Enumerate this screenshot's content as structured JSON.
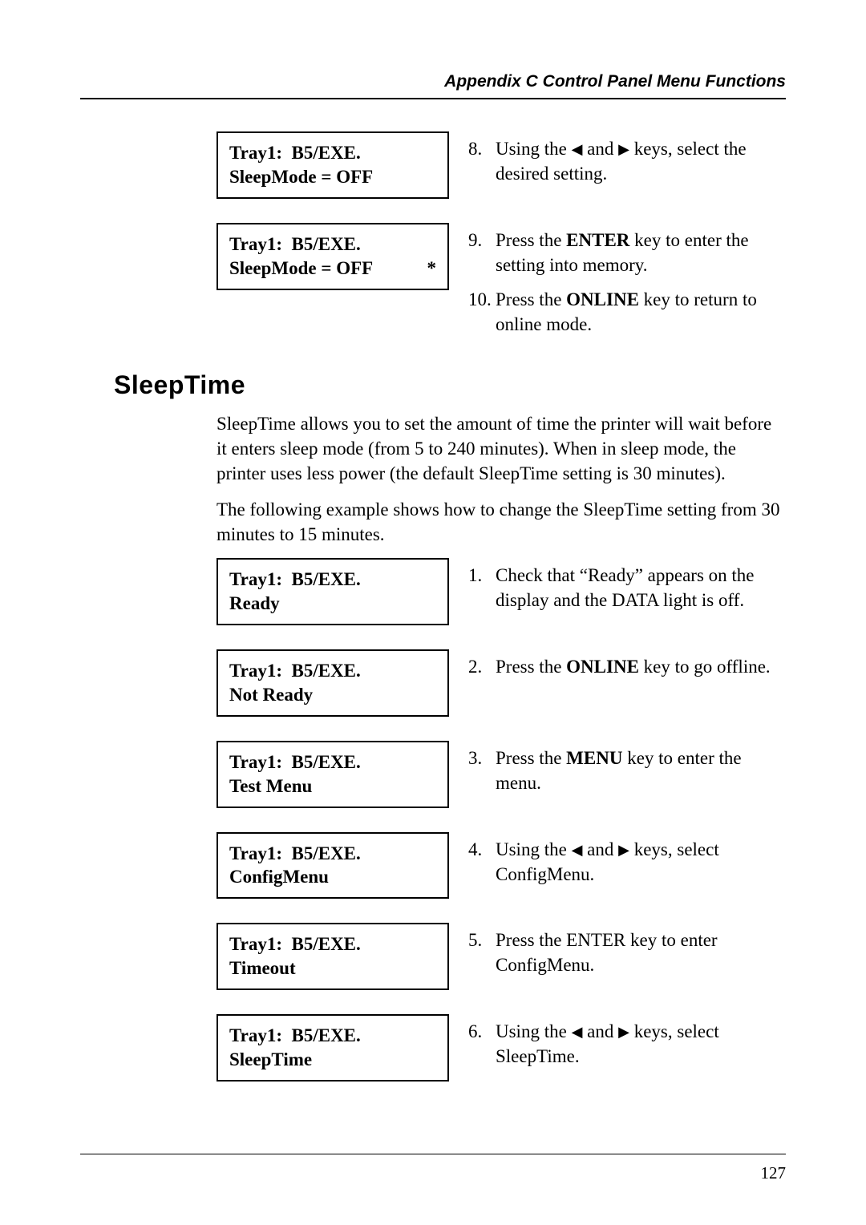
{
  "colors": {
    "text": "#000000",
    "background": "#ffffff",
    "rule": "#000000"
  },
  "typography": {
    "body_family": "Garamond / Georgia serif",
    "heading_family": "Arial / Helvetica sans-serif",
    "body_size_pt": 17,
    "heading_size_pt": 24,
    "header_size_pt": 16
  },
  "header": {
    "title": "Appendix C Control Panel Menu Functions"
  },
  "footer": {
    "page_number": "127"
  },
  "top_steps": [
    {
      "lcd": {
        "line1": "Tray1:  B5/EXE.",
        "line2": "SleepMode = OFF",
        "star": false
      },
      "items": [
        {
          "num": "8.",
          "text_parts": [
            "Using the ",
            "◀",
            " and ",
            "▶",
            " keys, select the desired setting."
          ],
          "bold": []
        }
      ]
    },
    {
      "lcd": {
        "line1": "Tray1:  B5/EXE.",
        "line2": "SleepMode = OFF",
        "star": true
      },
      "items": [
        {
          "num": "9.",
          "text_parts": [
            "Press the ",
            "ENTER",
            " key to enter the setting into memory."
          ],
          "bold": [
            1
          ]
        },
        {
          "num": "10.",
          "text_parts": [
            "Press the ",
            "ONLINE",
            " key to return to online mode."
          ],
          "bold": [
            1
          ]
        }
      ]
    }
  ],
  "section": {
    "heading": "SleepTime",
    "paragraphs": [
      "SleepTime allows you to set the amount of time the printer will wait before it enters sleep mode (from 5 to 240 minutes). When in sleep mode, the printer uses less power (the default SleepTime setting is 30 minutes).",
      "The following example shows how to change the SleepTime setting from 30 minutes to 15 minutes."
    ],
    "steps": [
      {
        "lcd": {
          "line1": "Tray1:  B5/EXE.",
          "line2": "Ready",
          "star": false
        },
        "items": [
          {
            "num": "1.",
            "text_parts": [
              "Check that “Ready” appears on the display and the DATA light is off."
            ],
            "bold": []
          }
        ]
      },
      {
        "lcd": {
          "line1": "Tray1:  B5/EXE.",
          "line2": "Not Ready",
          "star": false
        },
        "items": [
          {
            "num": "2.",
            "text_parts": [
              "Press the ",
              "ONLINE",
              " key to go offline."
            ],
            "bold": [
              1
            ]
          }
        ]
      },
      {
        "lcd": {
          "line1": "Tray1:  B5/EXE.",
          "line2": "Test Menu",
          "star": false
        },
        "items": [
          {
            "num": "3.",
            "text_parts": [
              "Press the ",
              "MENU",
              " key to enter the menu."
            ],
            "bold": [
              1
            ]
          }
        ]
      },
      {
        "lcd": {
          "line1": "Tray1:  B5/EXE.",
          "line2": "ConfigMenu",
          "star": false
        },
        "items": [
          {
            "num": "4.",
            "text_parts": [
              "Using the ",
              "◀",
              " and ",
              "▶",
              " keys, select ConfigMenu."
            ],
            "bold": []
          }
        ]
      },
      {
        "lcd": {
          "line1": "Tray1:  B5/EXE.",
          "line2": "Timeout",
          "star": false
        },
        "items": [
          {
            "num": "5.",
            "text_parts": [
              "Press the ENTER key to enter ConfigMenu."
            ],
            "bold": []
          }
        ]
      },
      {
        "lcd": {
          "line1": "Tray1:  B5/EXE.",
          "line2": "SleepTime",
          "star": false
        },
        "items": [
          {
            "num": "6.",
            "text_parts": [
              "Using the ",
              "◀",
              " and ",
              "▶",
              " keys, select SleepTime."
            ],
            "bold": []
          }
        ]
      }
    ]
  }
}
